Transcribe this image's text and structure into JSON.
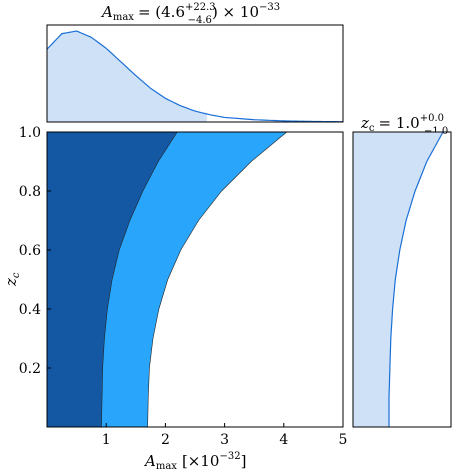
{
  "chart_data": [
    {
      "panel": "marginal-top",
      "type": "area",
      "title": "A_max = (4.6 +22.3 -4.6) × 10^-33",
      "title_parts": {
        "name": "A",
        "sub": "max",
        "eq": "= (4.6",
        "sup_up": "+22.3",
        "sub_dn": "−4.6",
        "tail": ") × 10",
        "exp": "−33"
      },
      "x": [
        0,
        0.25,
        0.5,
        0.75,
        1.0,
        1.25,
        1.5,
        1.75,
        2.0,
        2.25,
        2.5,
        2.75,
        3.0,
        3.5,
        4.0,
        4.5,
        5.0
      ],
      "density": [
        0.8,
        0.97,
        1.0,
        0.93,
        0.81,
        0.66,
        0.51,
        0.37,
        0.26,
        0.18,
        0.12,
        0.08,
        0.05,
        0.025,
        0.012,
        0.006,
        0.003
      ],
      "shaded_to": 2.7,
      "xlim": [
        0,
        5
      ],
      "colors": {
        "line": "#1a6fd6",
        "fill": "#cfe1f6"
      }
    },
    {
      "panel": "joint",
      "type": "area",
      "xlabel": "A_max [×10^-32]",
      "ylabel": "z_c",
      "xlim": [
        0,
        5
      ],
      "ylim": [
        0,
        1.0
      ],
      "xticks": [
        "1",
        "2",
        "3",
        "4",
        "5"
      ],
      "yticks": [
        "0.2",
        "0.4",
        "0.6",
        "0.8",
        "1.0"
      ],
      "z": [
        0.0,
        0.1,
        0.2,
        0.3,
        0.4,
        0.5,
        0.6,
        0.7,
        0.8,
        0.9,
        1.0
      ],
      "contour_68_xmax": [
        0.92,
        0.93,
        0.94,
        0.97,
        1.02,
        1.1,
        1.22,
        1.4,
        1.62,
        1.88,
        2.2
      ],
      "contour_95_xmax": [
        1.7,
        1.71,
        1.73,
        1.79,
        1.89,
        2.04,
        2.26,
        2.56,
        2.95,
        3.45,
        4.05
      ],
      "colors": {
        "c68": "#1457a3",
        "c95": "#29a6fb"
      }
    },
    {
      "panel": "marginal-right",
      "type": "area",
      "title": "z_c = 1.0 +0.0 -1.0",
      "title_parts": {
        "name": "z",
        "sub": "c",
        "eq": "= 1.0",
        "sup_up": "+0.0",
        "sub_dn": "−1.0"
      },
      "z": [
        0.0,
        0.1,
        0.2,
        0.3,
        0.4,
        0.5,
        0.6,
        0.7,
        0.8,
        0.9,
        1.0
      ],
      "density": [
        0.4,
        0.4,
        0.41,
        0.42,
        0.44,
        0.47,
        0.52,
        0.59,
        0.69,
        0.82,
        1.0
      ],
      "ylim": [
        0,
        1.0
      ],
      "colors": {
        "line": "#1a6fd6",
        "fill": "#cfe1f6"
      }
    }
  ]
}
